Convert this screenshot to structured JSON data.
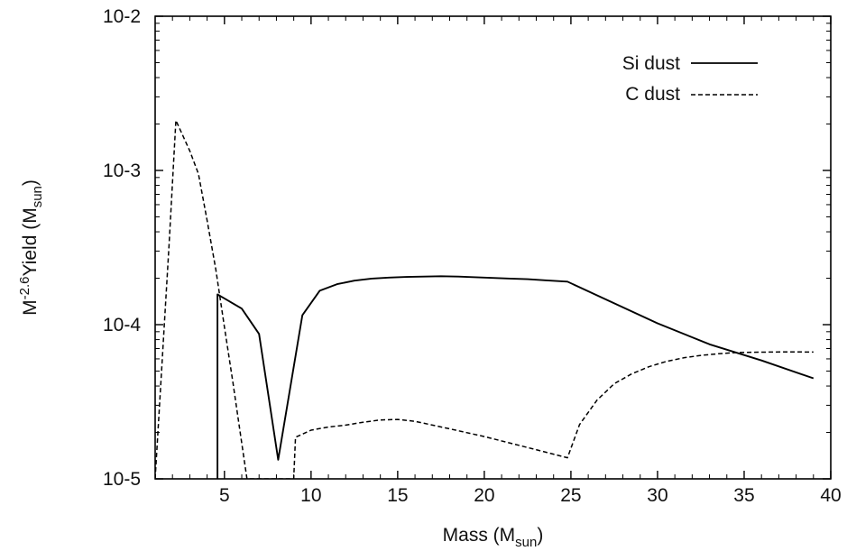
{
  "chart_data": {
    "type": "line",
    "xlabel": {
      "base": "Mass (M",
      "sub": "sun",
      "tail": ")"
    },
    "ylabel": {
      "base": "M",
      "sup": "-2.6",
      "mid": "Yield (M",
      "sub": "sun",
      "tail": ")"
    },
    "xlim": [
      1,
      40
    ],
    "ylim": [
      1e-05,
      0.01
    ],
    "yscale": "log",
    "x_ticks": [
      5,
      10,
      15,
      20,
      25,
      30,
      35,
      40
    ],
    "x_tick_labels": [
      "5",
      "10",
      "15",
      "20",
      "25",
      "30",
      "35",
      "40"
    ],
    "y_ticks": [
      1e-05,
      0.0001,
      0.001,
      0.01
    ],
    "y_tick_labels": [
      "10-5",
      "10-4",
      "10-3",
      "10-2"
    ],
    "grid": false,
    "legend_position": "top-right",
    "series": [
      {
        "name": "Si dust",
        "style": "solid",
        "color": "#000000",
        "x": [
          4.6,
          4.6,
          5.0,
          6.0,
          7.0,
          8.1,
          9.5,
          10.5,
          11.5,
          12.5,
          13.5,
          14.5,
          15.5,
          16.5,
          17.5,
          18.5,
          19.5,
          20.5,
          21.5,
          22.5,
          23.5,
          24.8,
          27,
          30,
          33,
          36,
          39
        ],
        "y": [
          1e-05,
          0.000157,
          0.000148,
          0.000127,
          8.71e-05,
          1.33e-05,
          0.000115,
          0.000166,
          0.000183,
          0.000193,
          0.000199,
          0.000202,
          0.000204,
          0.000205,
          0.000206,
          0.000205,
          0.000203,
          0.000201,
          0.000199,
          0.000197,
          0.000194,
          0.00019,
          0.000146,
          0.000102,
          7.46e-05,
          5.86e-05,
          4.49e-05
        ]
      },
      {
        "name": "C dust",
        "style": "dashed",
        "color": "#000000",
        "x": [
          1.0,
          1.8,
          2.2,
          3.0,
          3.5,
          4.0,
          4.5,
          5.0,
          5.5,
          5.9,
          6.3,
          9.0,
          9.1,
          10.0,
          11.0,
          12.0,
          13.0,
          14.0,
          15.0,
          16.0,
          18.0,
          20.0,
          22.0,
          24.8,
          25.5,
          26.5,
          27.5,
          28.5,
          29.5,
          30.5,
          31.5,
          32.5,
          33.5,
          34.5,
          35.5,
          36.5,
          37.5,
          39.0
        ],
        "y": [
          1e-05,
          0.000327,
          0.00211,
          0.00134,
          0.00095,
          0.000474,
          0.000229,
          9.65e-05,
          4.15e-05,
          2.03e-05,
          1e-05,
          1e-05,
          1.86e-05,
          2.07e-05,
          2.17e-05,
          2.23e-05,
          2.33e-05,
          2.41e-05,
          2.43e-05,
          2.36e-05,
          2.11e-05,
          1.88e-05,
          1.65e-05,
          1.37e-05,
          2.25e-05,
          3.23e-05,
          4.14e-05,
          4.79e-05,
          5.33e-05,
          5.77e-05,
          6.09e-05,
          6.32e-05,
          6.47e-05,
          6.59e-05,
          6.62e-05,
          6.64e-05,
          6.66e-05,
          6.64e-05
        ]
      }
    ]
  }
}
